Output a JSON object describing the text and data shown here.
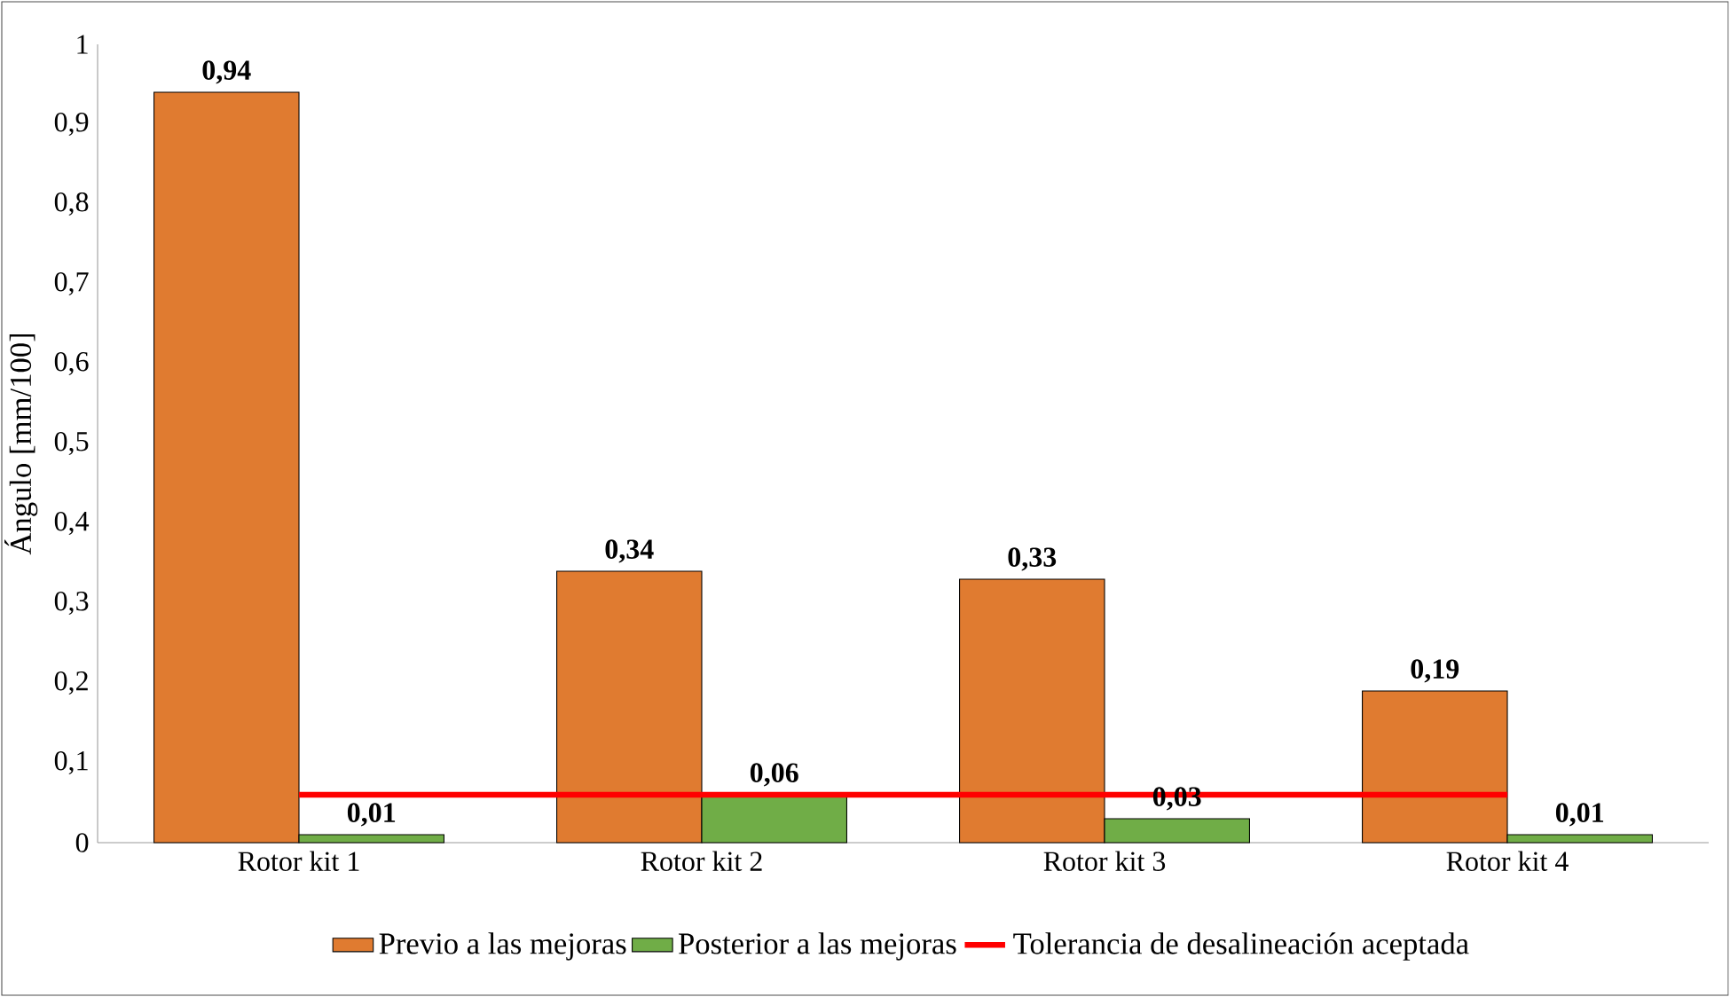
{
  "chart_data": {
    "type": "bar",
    "ylabel": "Ángulo [mm/100]",
    "categories": [
      "Rotor kit 1",
      "Rotor kit 2",
      "Rotor kit 3",
      "Rotor kit 4"
    ],
    "series": [
      {
        "name": "Previo a las mejoras",
        "color": "#e07b30",
        "values": [
          0.94,
          0.34,
          0.33,
          0.19
        ],
        "value_labels": [
          "0,94",
          "0,34",
          "0,33",
          "0,19"
        ]
      },
      {
        "name": "Posterior a las mejoras",
        "color": "#70ad47",
        "values": [
          0.01,
          0.06,
          0.03,
          0.01
        ],
        "value_labels": [
          "0,01",
          "0,06",
          "0,03",
          "0,01"
        ]
      },
      {
        "name": "Tolerancia de desalineación aceptada",
        "type": "line",
        "color": "#ff0000",
        "values": [
          0.06,
          0.06,
          0.06,
          0.06
        ]
      }
    ],
    "ylim": [
      0,
      1
    ],
    "yticks": [
      0,
      {
        "value": 0.1,
        "label": "0,1"
      },
      {
        "value": 0.2,
        "label": "0,2"
      },
      {
        "value": 0.3,
        "label": "0,3"
      },
      {
        "value": 0.4,
        "label": "0,4"
      },
      {
        "value": 0.5,
        "label": "0,5"
      },
      {
        "value": 0.6,
        "label": "0,6"
      },
      {
        "value": 0.7,
        "label": "0,7"
      },
      {
        "value": 0.8,
        "label": "0,8"
      },
      {
        "value": 0.9,
        "label": "0,9"
      },
      1
    ],
    "grid": false,
    "legend": "bottom"
  }
}
